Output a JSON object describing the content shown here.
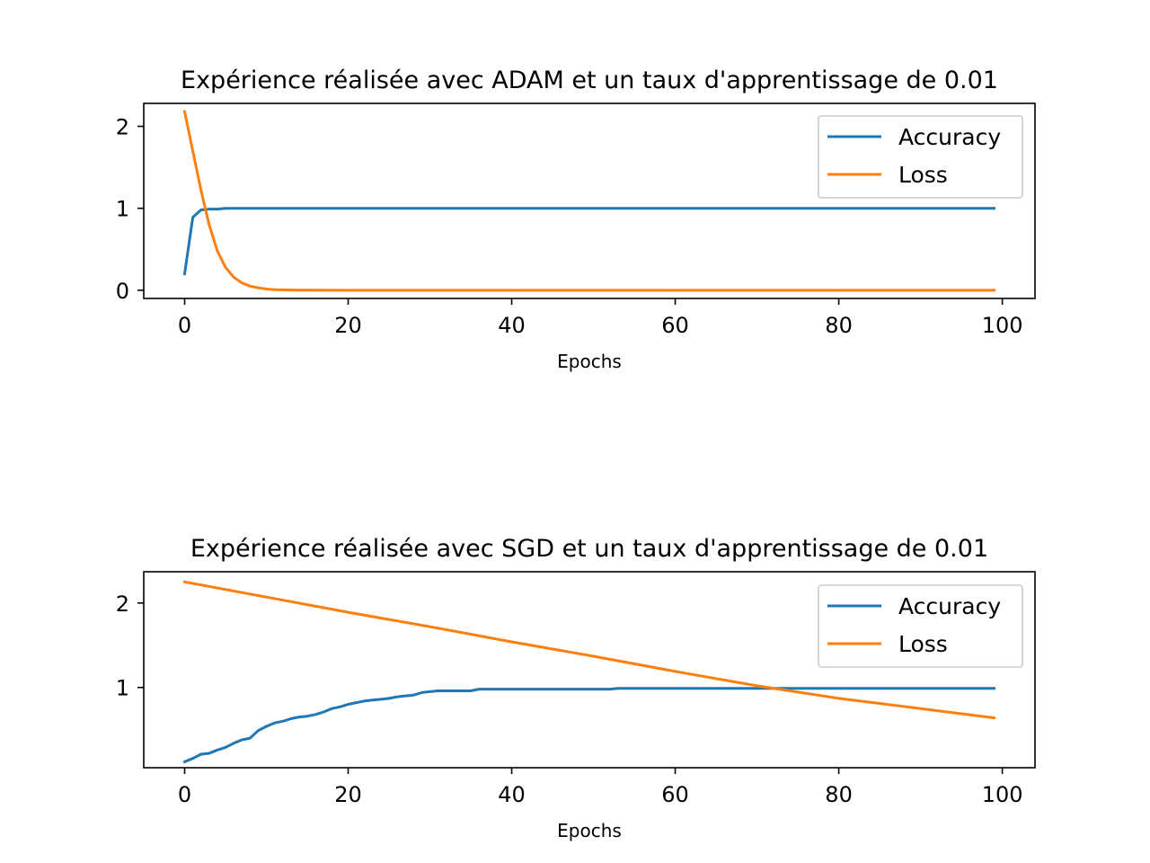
{
  "chart_data": [
    {
      "type": "line",
      "title": "Expérience réalisée avec ADAM et un taux d'apprentissage de 0.01",
      "xlabel": "Epochs",
      "ylabel": "",
      "xlim": [
        -5,
        104
      ],
      "ylim": [
        -0.1,
        2.28
      ],
      "xticks": [
        0,
        20,
        40,
        60,
        80,
        100
      ],
      "yticks": [
        0,
        1,
        2
      ],
      "grid": false,
      "legend_position": "top-right",
      "series": [
        {
          "name": "Accuracy",
          "color": "#1f77b4",
          "points": [
            [
              0,
              0.2
            ],
            [
              1,
              0.89
            ],
            [
              2,
              0.98
            ],
            [
              3,
              0.99
            ],
            [
              4,
              0.99
            ],
            [
              5,
              1.0
            ],
            [
              6,
              1.0
            ],
            [
              7,
              1.0
            ],
            [
              8,
              1.0
            ],
            [
              9,
              1.0
            ],
            [
              10,
              1.0
            ],
            [
              15,
              1.0
            ],
            [
              20,
              1.0
            ],
            [
              30,
              1.0
            ],
            [
              40,
              1.0
            ],
            [
              50,
              1.0
            ],
            [
              60,
              1.0
            ],
            [
              70,
              1.0
            ],
            [
              80,
              1.0
            ],
            [
              90,
              1.0
            ],
            [
              99,
              1.0
            ]
          ]
        },
        {
          "name": "Loss",
          "color": "#ff7f0e",
          "points": [
            [
              0,
              2.18
            ],
            [
              1,
              1.7
            ],
            [
              2,
              1.22
            ],
            [
              3,
              0.8
            ],
            [
              4,
              0.48
            ],
            [
              5,
              0.28
            ],
            [
              6,
              0.16
            ],
            [
              7,
              0.09
            ],
            [
              8,
              0.05
            ],
            [
              9,
              0.03
            ],
            [
              10,
              0.015
            ],
            [
              11,
              0.008
            ],
            [
              12,
              0.005
            ],
            [
              13,
              0.003
            ],
            [
              14,
              0.002
            ],
            [
              15,
              0.001
            ],
            [
              20,
              0.0
            ],
            [
              30,
              0.0
            ],
            [
              40,
              0.0
            ],
            [
              50,
              0.0
            ],
            [
              60,
              0.0
            ],
            [
              70,
              0.0
            ],
            [
              80,
              0.0
            ],
            [
              90,
              0.0
            ],
            [
              99,
              0.0
            ]
          ]
        }
      ]
    },
    {
      "type": "line",
      "title": "Expérience réalisée avec SGD et un taux d'apprentissage de 0.01",
      "xlabel": "Epochs",
      "ylabel": "",
      "xlim": [
        -5,
        104
      ],
      "ylim": [
        0.05,
        2.37
      ],
      "xticks": [
        0,
        20,
        40,
        60,
        80,
        100
      ],
      "yticks": [
        1,
        2
      ],
      "grid": false,
      "legend_position": "top-right",
      "series": [
        {
          "name": "Accuracy",
          "color": "#1f77b4",
          "points": [
            [
              0,
              0.12
            ],
            [
              1,
              0.16
            ],
            [
              2,
              0.21
            ],
            [
              3,
              0.22
            ],
            [
              4,
              0.26
            ],
            [
              5,
              0.29
            ],
            [
              6,
              0.34
            ],
            [
              7,
              0.38
            ],
            [
              8,
              0.4
            ],
            [
              9,
              0.49
            ],
            [
              10,
              0.54
            ],
            [
              11,
              0.58
            ],
            [
              12,
              0.6
            ],
            [
              13,
              0.63
            ],
            [
              14,
              0.65
            ],
            [
              15,
              0.66
            ],
            [
              16,
              0.68
            ],
            [
              17,
              0.71
            ],
            [
              18,
              0.75
            ],
            [
              19,
              0.77
            ],
            [
              20,
              0.8
            ],
            [
              21,
              0.82
            ],
            [
              22,
              0.84
            ],
            [
              23,
              0.85
            ],
            [
              24,
              0.86
            ],
            [
              25,
              0.87
            ],
            [
              26,
              0.89
            ],
            [
              27,
              0.9
            ],
            [
              28,
              0.91
            ],
            [
              29,
              0.94
            ],
            [
              30,
              0.95
            ],
            [
              31,
              0.96
            ],
            [
              32,
              0.96
            ],
            [
              33,
              0.96
            ],
            [
              34,
              0.96
            ],
            [
              35,
              0.96
            ],
            [
              36,
              0.98
            ],
            [
              40,
              0.98
            ],
            [
              45,
              0.98
            ],
            [
              50,
              0.98
            ],
            [
              52,
              0.98
            ],
            [
              53,
              0.99
            ],
            [
              60,
              0.99
            ],
            [
              70,
              0.99
            ],
            [
              80,
              0.99
            ],
            [
              90,
              0.99
            ],
            [
              99,
              0.99
            ]
          ]
        },
        {
          "name": "Loss",
          "color": "#ff7f0e",
          "points": [
            [
              0,
              2.25
            ],
            [
              10,
              2.07
            ],
            [
              20,
              1.89
            ],
            [
              30,
              1.72
            ],
            [
              40,
              1.54
            ],
            [
              50,
              1.37
            ],
            [
              60,
              1.19
            ],
            [
              70,
              1.02
            ],
            [
              80,
              0.87
            ],
            [
              90,
              0.75
            ],
            [
              99,
              0.64
            ]
          ]
        }
      ]
    }
  ]
}
